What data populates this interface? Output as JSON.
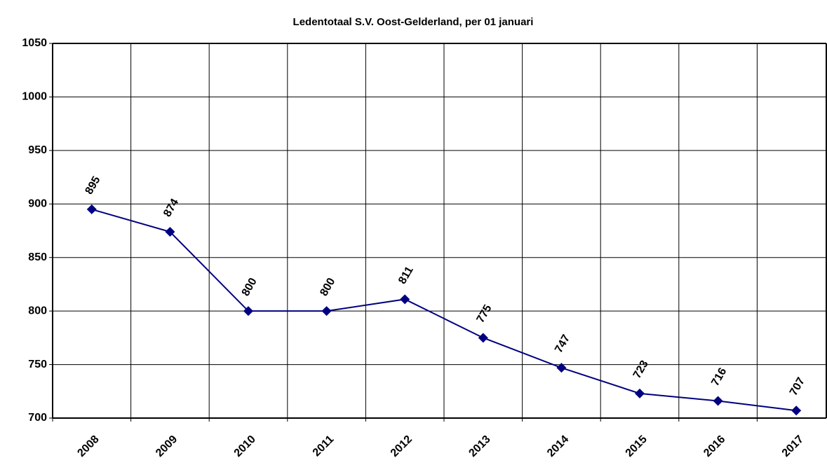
{
  "chart_data": {
    "type": "line",
    "title": "Ledentotaal S.V. Oost-Gelderland, per 01 januari",
    "categories": [
      "2008",
      "2009",
      "2010",
      "2011",
      "2012",
      "2013",
      "2014",
      "2015",
      "2016",
      "2017"
    ],
    "series": [
      {
        "name": "Ledentotaal",
        "color": "#000080",
        "values": [
          895,
          874,
          800,
          800,
          811,
          775,
          747,
          723,
          716,
          707
        ]
      }
    ],
    "ylim": [
      700,
      1050
    ],
    "yticks": [
      700,
      750,
      800,
      850,
      900,
      950,
      1000,
      1050
    ],
    "grid": true
  }
}
